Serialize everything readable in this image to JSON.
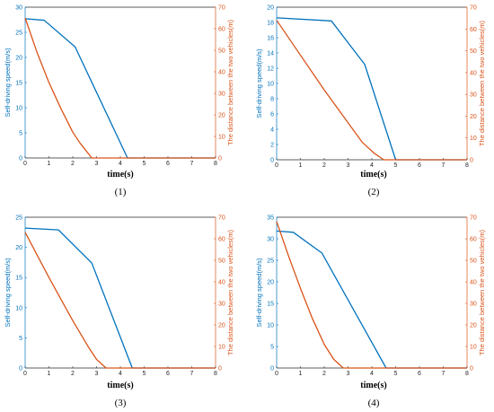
{
  "figure": {
    "panels": [
      {
        "caption": "(1)",
        "chart_data": {
          "type": "line",
          "xlabel": "time(s)",
          "ylabel_left": "Self-driving speed(m/s)",
          "ylabel_right": "The distance between the two vehicles(m)",
          "xlim": [
            0,
            8
          ],
          "ylim_left": [
            0,
            30
          ],
          "ylim_right": [
            0,
            70
          ],
          "xticks": [
            "0",
            "1",
            "2",
            "3",
            "4",
            "5",
            "6",
            "7",
            "8"
          ],
          "yticks_left": [
            "0",
            "5",
            "10",
            "15",
            "20",
            "25",
            "30"
          ],
          "yticks_right": [
            "0",
            "10",
            "20",
            "30",
            "40",
            "50",
            "60",
            "70"
          ],
          "series": [
            {
              "axis": "left",
              "color": "#0072BD",
              "x": [
                0,
                0.8,
                2.1,
                4.3,
                8
              ],
              "y": [
                27.7,
                27.4,
                22.1,
                0,
                0
              ]
            },
            {
              "axis": "right",
              "color": "#D95319",
              "x": [
                0,
                0.5,
                1.0,
                1.5,
                2.0,
                2.3,
                2.8,
                8
              ],
              "y": [
                65,
                49,
                35,
                23,
                12,
                7,
                0,
                0
              ]
            }
          ]
        }
      },
      {
        "caption": "(2)",
        "chart_data": {
          "type": "line",
          "xlabel": "time(s)",
          "ylabel_left": "Self-driving speed(m/s)",
          "ylabel_right": "The distance between the two vehicles(m)",
          "xlim": [
            0,
            8
          ],
          "ylim_left": [
            0,
            20
          ],
          "ylim_right": [
            0,
            70
          ],
          "xticks": [
            "0",
            "1",
            "2",
            "3",
            "4",
            "5",
            "6",
            "7",
            "8"
          ],
          "yticks_left": [
            "0",
            "2",
            "4",
            "6",
            "8",
            "10",
            "12",
            "14",
            "16",
            "18",
            "20"
          ],
          "yticks_right": [
            "0",
            "10",
            "20",
            "30",
            "40",
            "50",
            "60",
            "70"
          ],
          "series": [
            {
              "axis": "left",
              "color": "#0072BD",
              "x": [
                0,
                2.3,
                3.7,
                5.0,
                8
              ],
              "y": [
                18.6,
                18.2,
                12.5,
                0,
                0
              ]
            },
            {
              "axis": "right",
              "color": "#D95319",
              "x": [
                0,
                1.0,
                2.0,
                3.0,
                3.6,
                4.1,
                4.5,
                8
              ],
              "y": [
                64,
                48,
                32,
                17,
                8,
                3,
                0,
                0
              ]
            }
          ]
        }
      },
      {
        "caption": "(3)",
        "chart_data": {
          "type": "line",
          "xlabel": "time(s)",
          "ylabel_left": "Self-driving speed(m/s)",
          "ylabel_right": "The distance between the two vehicles(m)",
          "xlim": [
            0,
            8
          ],
          "ylim_left": [
            0,
            25
          ],
          "ylim_right": [
            0,
            70
          ],
          "xticks": [
            "0",
            "1",
            "2",
            "3",
            "4",
            "5",
            "6",
            "7",
            "8"
          ],
          "yticks_left": [
            "0",
            "5",
            "10",
            "15",
            "20",
            "25"
          ],
          "yticks_right": [
            "0",
            "10",
            "20",
            "30",
            "40",
            "50",
            "60",
            "70"
          ],
          "series": [
            {
              "axis": "left",
              "color": "#0072BD",
              "x": [
                0,
                1.4,
                2.8,
                4.5,
                8
              ],
              "y": [
                23.2,
                22.9,
                17.4,
                0,
                0
              ]
            },
            {
              "axis": "right",
              "color": "#D95319",
              "x": [
                0,
                1.0,
                2.0,
                2.7,
                3.0,
                3.4,
                8
              ],
              "y": [
                63,
                42,
                22,
                9,
                4,
                0,
                0
              ]
            }
          ]
        }
      },
      {
        "caption": "(4)",
        "chart_data": {
          "type": "line",
          "xlabel": "time(s)",
          "ylabel_left": "Self-driving speed(m/s)",
          "ylabel_right": "The distance between the two vehicles(m)",
          "xlim": [
            0,
            8
          ],
          "ylim_left": [
            0,
            35
          ],
          "ylim_right": [
            0,
            70
          ],
          "xticks": [
            "0",
            "1",
            "2",
            "3",
            "4",
            "5",
            "6",
            "7",
            "8"
          ],
          "yticks_left": [
            "0",
            "5",
            "10",
            "15",
            "20",
            "25",
            "30",
            "35"
          ],
          "yticks_right": [
            "0",
            "10",
            "20",
            "30",
            "40",
            "50",
            "60",
            "70"
          ],
          "series": [
            {
              "axis": "left",
              "color": "#0072BD",
              "x": [
                0,
                0.7,
                1.9,
                4.6,
                8
              ],
              "y": [
                31.8,
                31.5,
                26.7,
                0,
                0
              ]
            },
            {
              "axis": "right",
              "color": "#D95319",
              "x": [
                0,
                0.5,
                1.0,
                1.5,
                2.0,
                2.4,
                2.8,
                8
              ],
              "y": [
                68,
                52,
                37,
                23,
                11,
                4,
                0,
                0
              ]
            }
          ]
        }
      }
    ]
  }
}
